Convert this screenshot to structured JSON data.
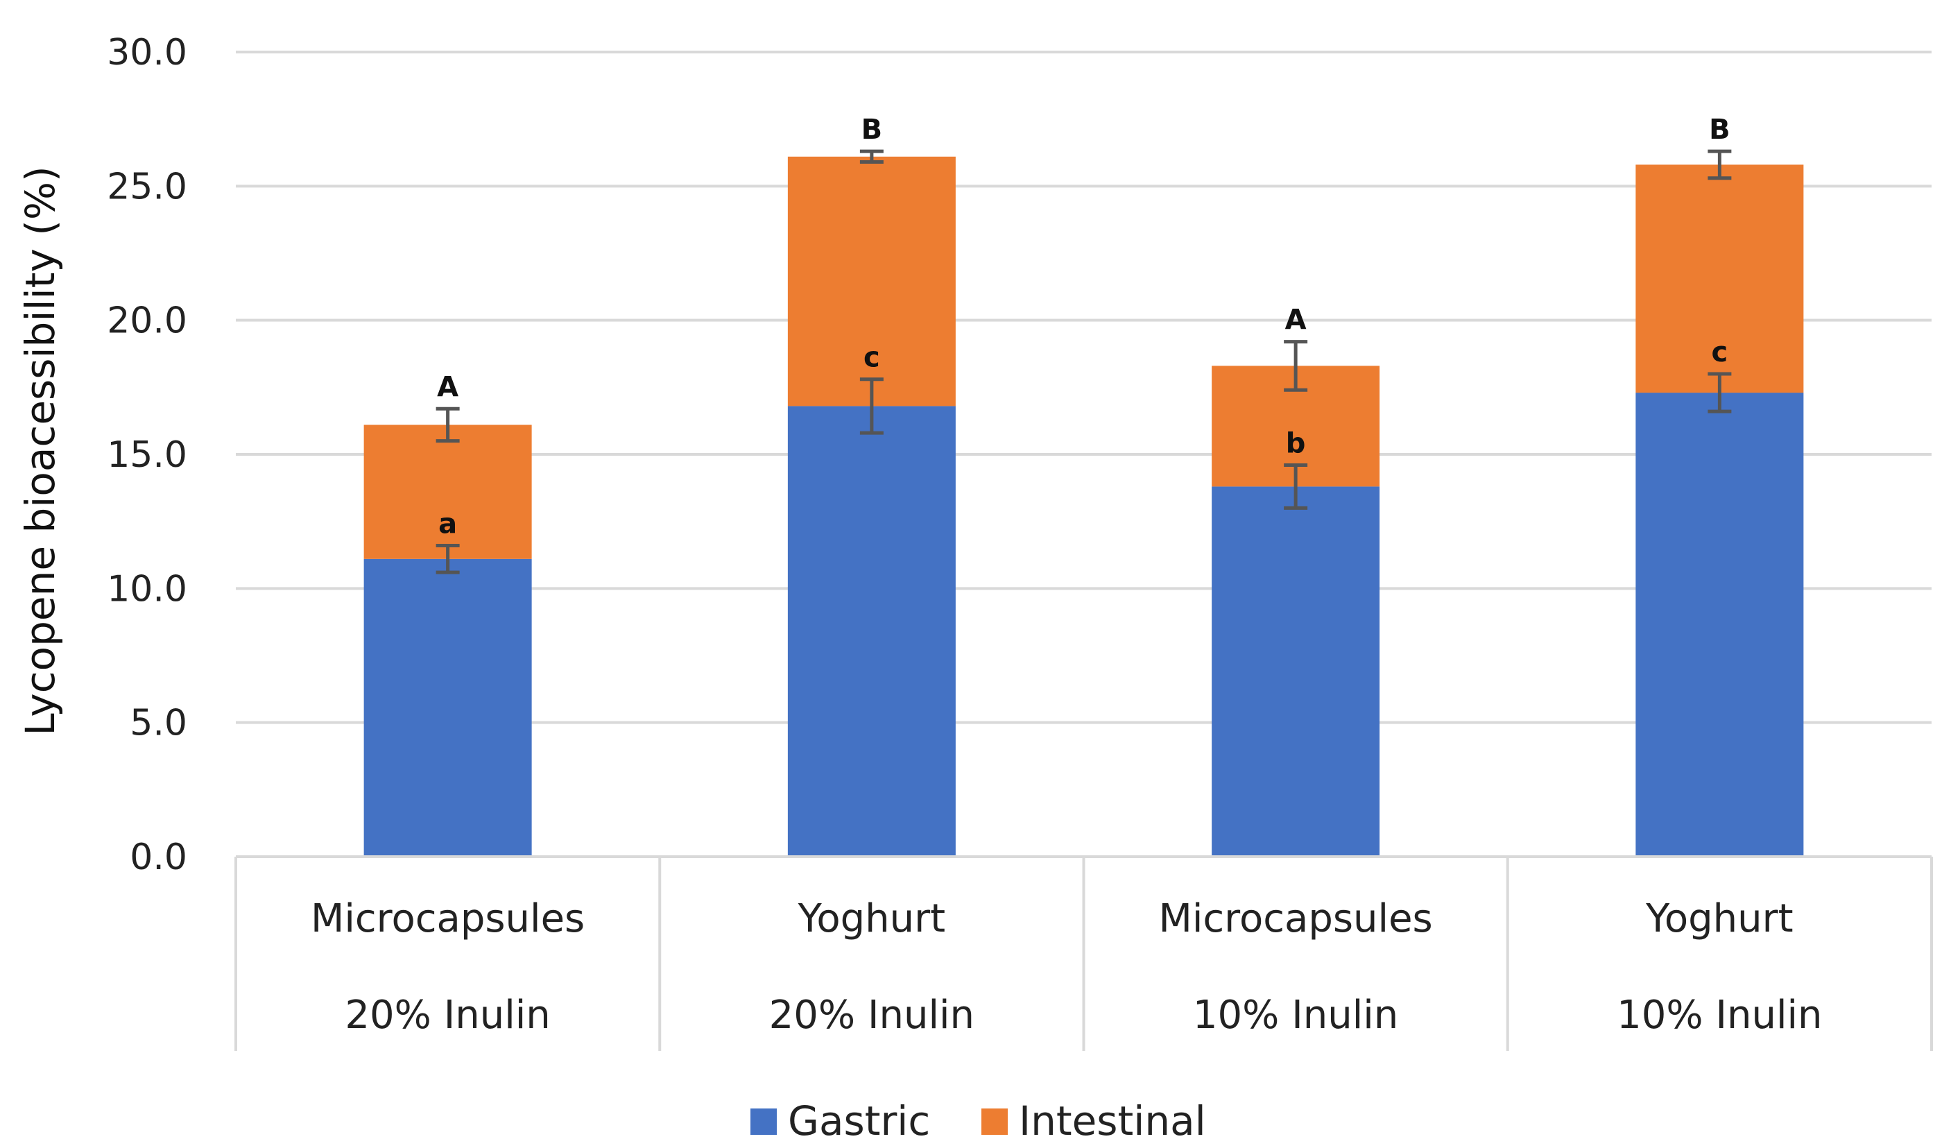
{
  "chart_data": {
    "type": "bar",
    "stacked": true,
    "title": "",
    "xlabel": "",
    "ylabel": "Lycopene bioacessibility (%)",
    "ylim": [
      0,
      30
    ],
    "yticks": [
      "0.0",
      "5.0",
      "10.0",
      "15.0",
      "20.0",
      "25.0",
      "30.0"
    ],
    "grid": true,
    "legend_position": "bottom",
    "categories": [
      {
        "line1": "Microcapsules",
        "line2": "20% Inulin"
      },
      {
        "line1": "Yoghurt",
        "line2": "20% Inulin"
      },
      {
        "line1": "Microcapsules",
        "line2": "10% Inulin"
      },
      {
        "line1": "Yoghurt",
        "line2": "10% Inulin"
      }
    ],
    "series": [
      {
        "name": "Gastric",
        "color": "#4472C4",
        "values": [
          11.1,
          16.8,
          13.8,
          17.3
        ],
        "errors": [
          0.5,
          1.0,
          0.8,
          0.7
        ],
        "significance": [
          "a",
          "c",
          "b",
          "c"
        ]
      },
      {
        "name": "Intestinal",
        "color": "#ED7D31",
        "values": [
          5.0,
          9.3,
          4.5,
          8.5
        ],
        "errors": [
          0.6,
          0.2,
          0.9,
          0.5
        ],
        "significance": [
          "A",
          "B",
          "A",
          "B"
        ]
      }
    ]
  }
}
